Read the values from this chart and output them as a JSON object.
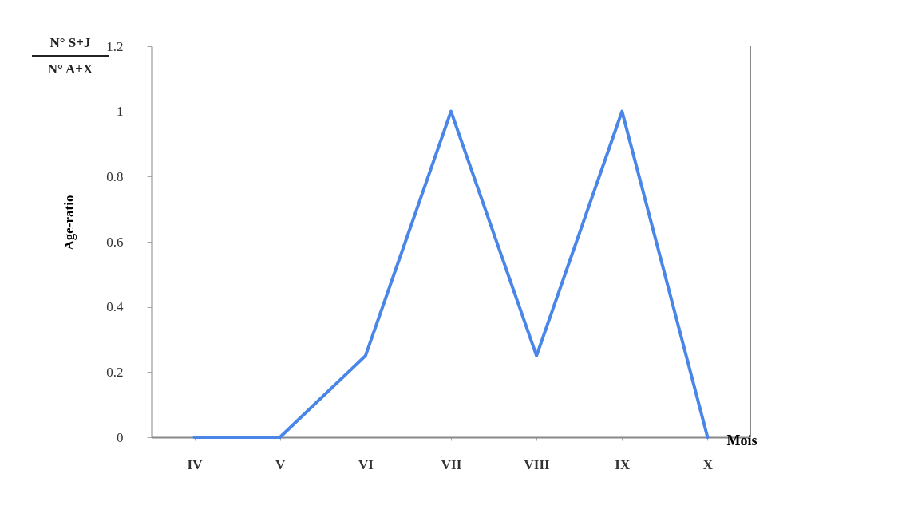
{
  "chart_data": {
    "type": "line",
    "xlabel": "Mois",
    "ylabel": "Age-ratio",
    "annotations": [
      "N° S+J",
      "N° A+X"
    ],
    "categories": [
      "IV",
      "V",
      "VI",
      "VII",
      "VIII",
      "IX",
      "X"
    ],
    "series": [
      {
        "color": "#4a86e8",
        "values": [
          0,
          0,
          0.25,
          1,
          0.25,
          1,
          0
        ]
      }
    ],
    "ylim": [
      0,
      1.2
    ],
    "yticks": [
      0,
      0.2,
      0.4,
      0.6,
      0.8,
      1,
      1.2
    ],
    "line_style": "solid"
  }
}
